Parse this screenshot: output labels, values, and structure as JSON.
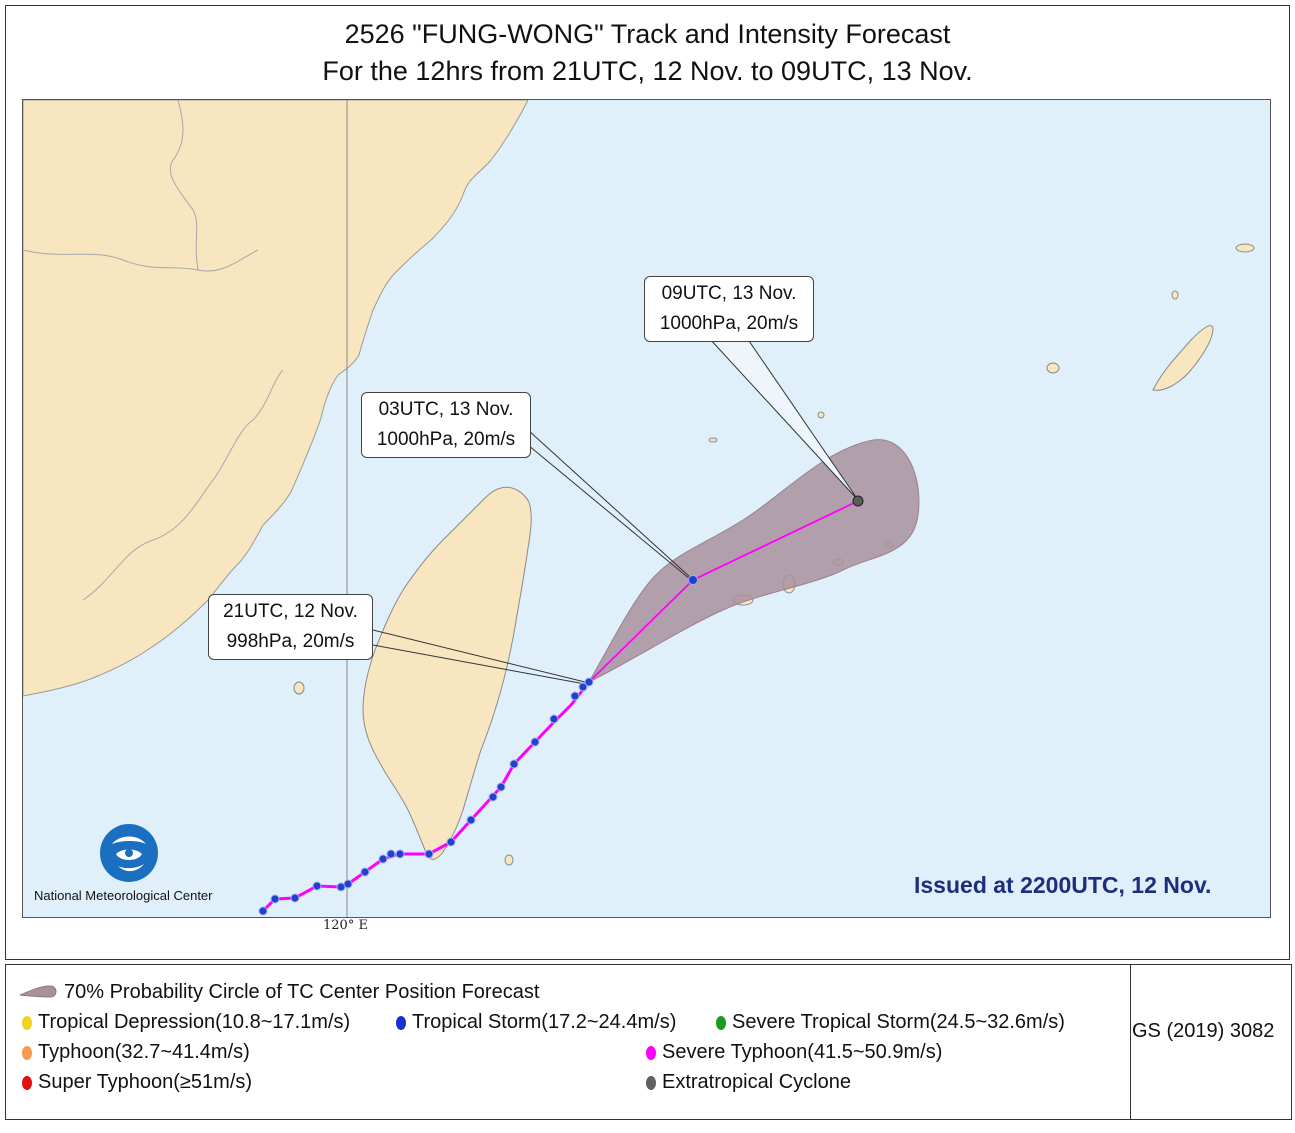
{
  "header": {
    "title_line1": "2526 \"FUNG-WONG\" Track and Intensity Forecast",
    "title_line2": "For the 12hrs from 21UTC, 12 Nov. to 09UTC, 13 Nov."
  },
  "map": {
    "longitude_label": "120° E",
    "issued": "Issued at 2200UTC, 12 Nov.",
    "organization": "National Meteorological Center",
    "colors": {
      "sea": "#e0f0fa",
      "land": "#f8e6c1",
      "track": "#ff00ff",
      "probability_cone": "#a8909c",
      "tropical_storm_dot": "#2440c8"
    },
    "forecast_points": [
      {
        "time": "21UTC, 12 Nov.",
        "info": "998hPa, 20m/s"
      },
      {
        "time": "03UTC, 13 Nov.",
        "info": "1000hPa, 20m/s"
      },
      {
        "time": "09UTC, 13 Nov.",
        "info": "1000hPa, 20m/s"
      }
    ]
  },
  "legend": {
    "probability": "70% Probability Circle of TC Center Position Forecast",
    "items": [
      {
        "label": "Tropical Depression(10.8~17.1m/s)",
        "color": "#f0d020"
      },
      {
        "label": "Tropical Storm(17.2~24.4m/s)",
        "color": "#1a2fd0"
      },
      {
        "label": "Severe Tropical Storm(24.5~32.6m/s)",
        "color": "#1a9a20"
      },
      {
        "label": "Typhoon(32.7~41.4m/s)",
        "color": "#f59a50"
      },
      {
        "label": "Severe Typhoon(41.5~50.9m/s)",
        "color": "#ff00ff"
      },
      {
        "label": "Super Typhoon(≥51m/s)",
        "color": "#e01010"
      },
      {
        "label": "Extratropical Cyclone",
        "color": "#606060"
      }
    ],
    "approval_number": "GS (2019) 3082"
  }
}
